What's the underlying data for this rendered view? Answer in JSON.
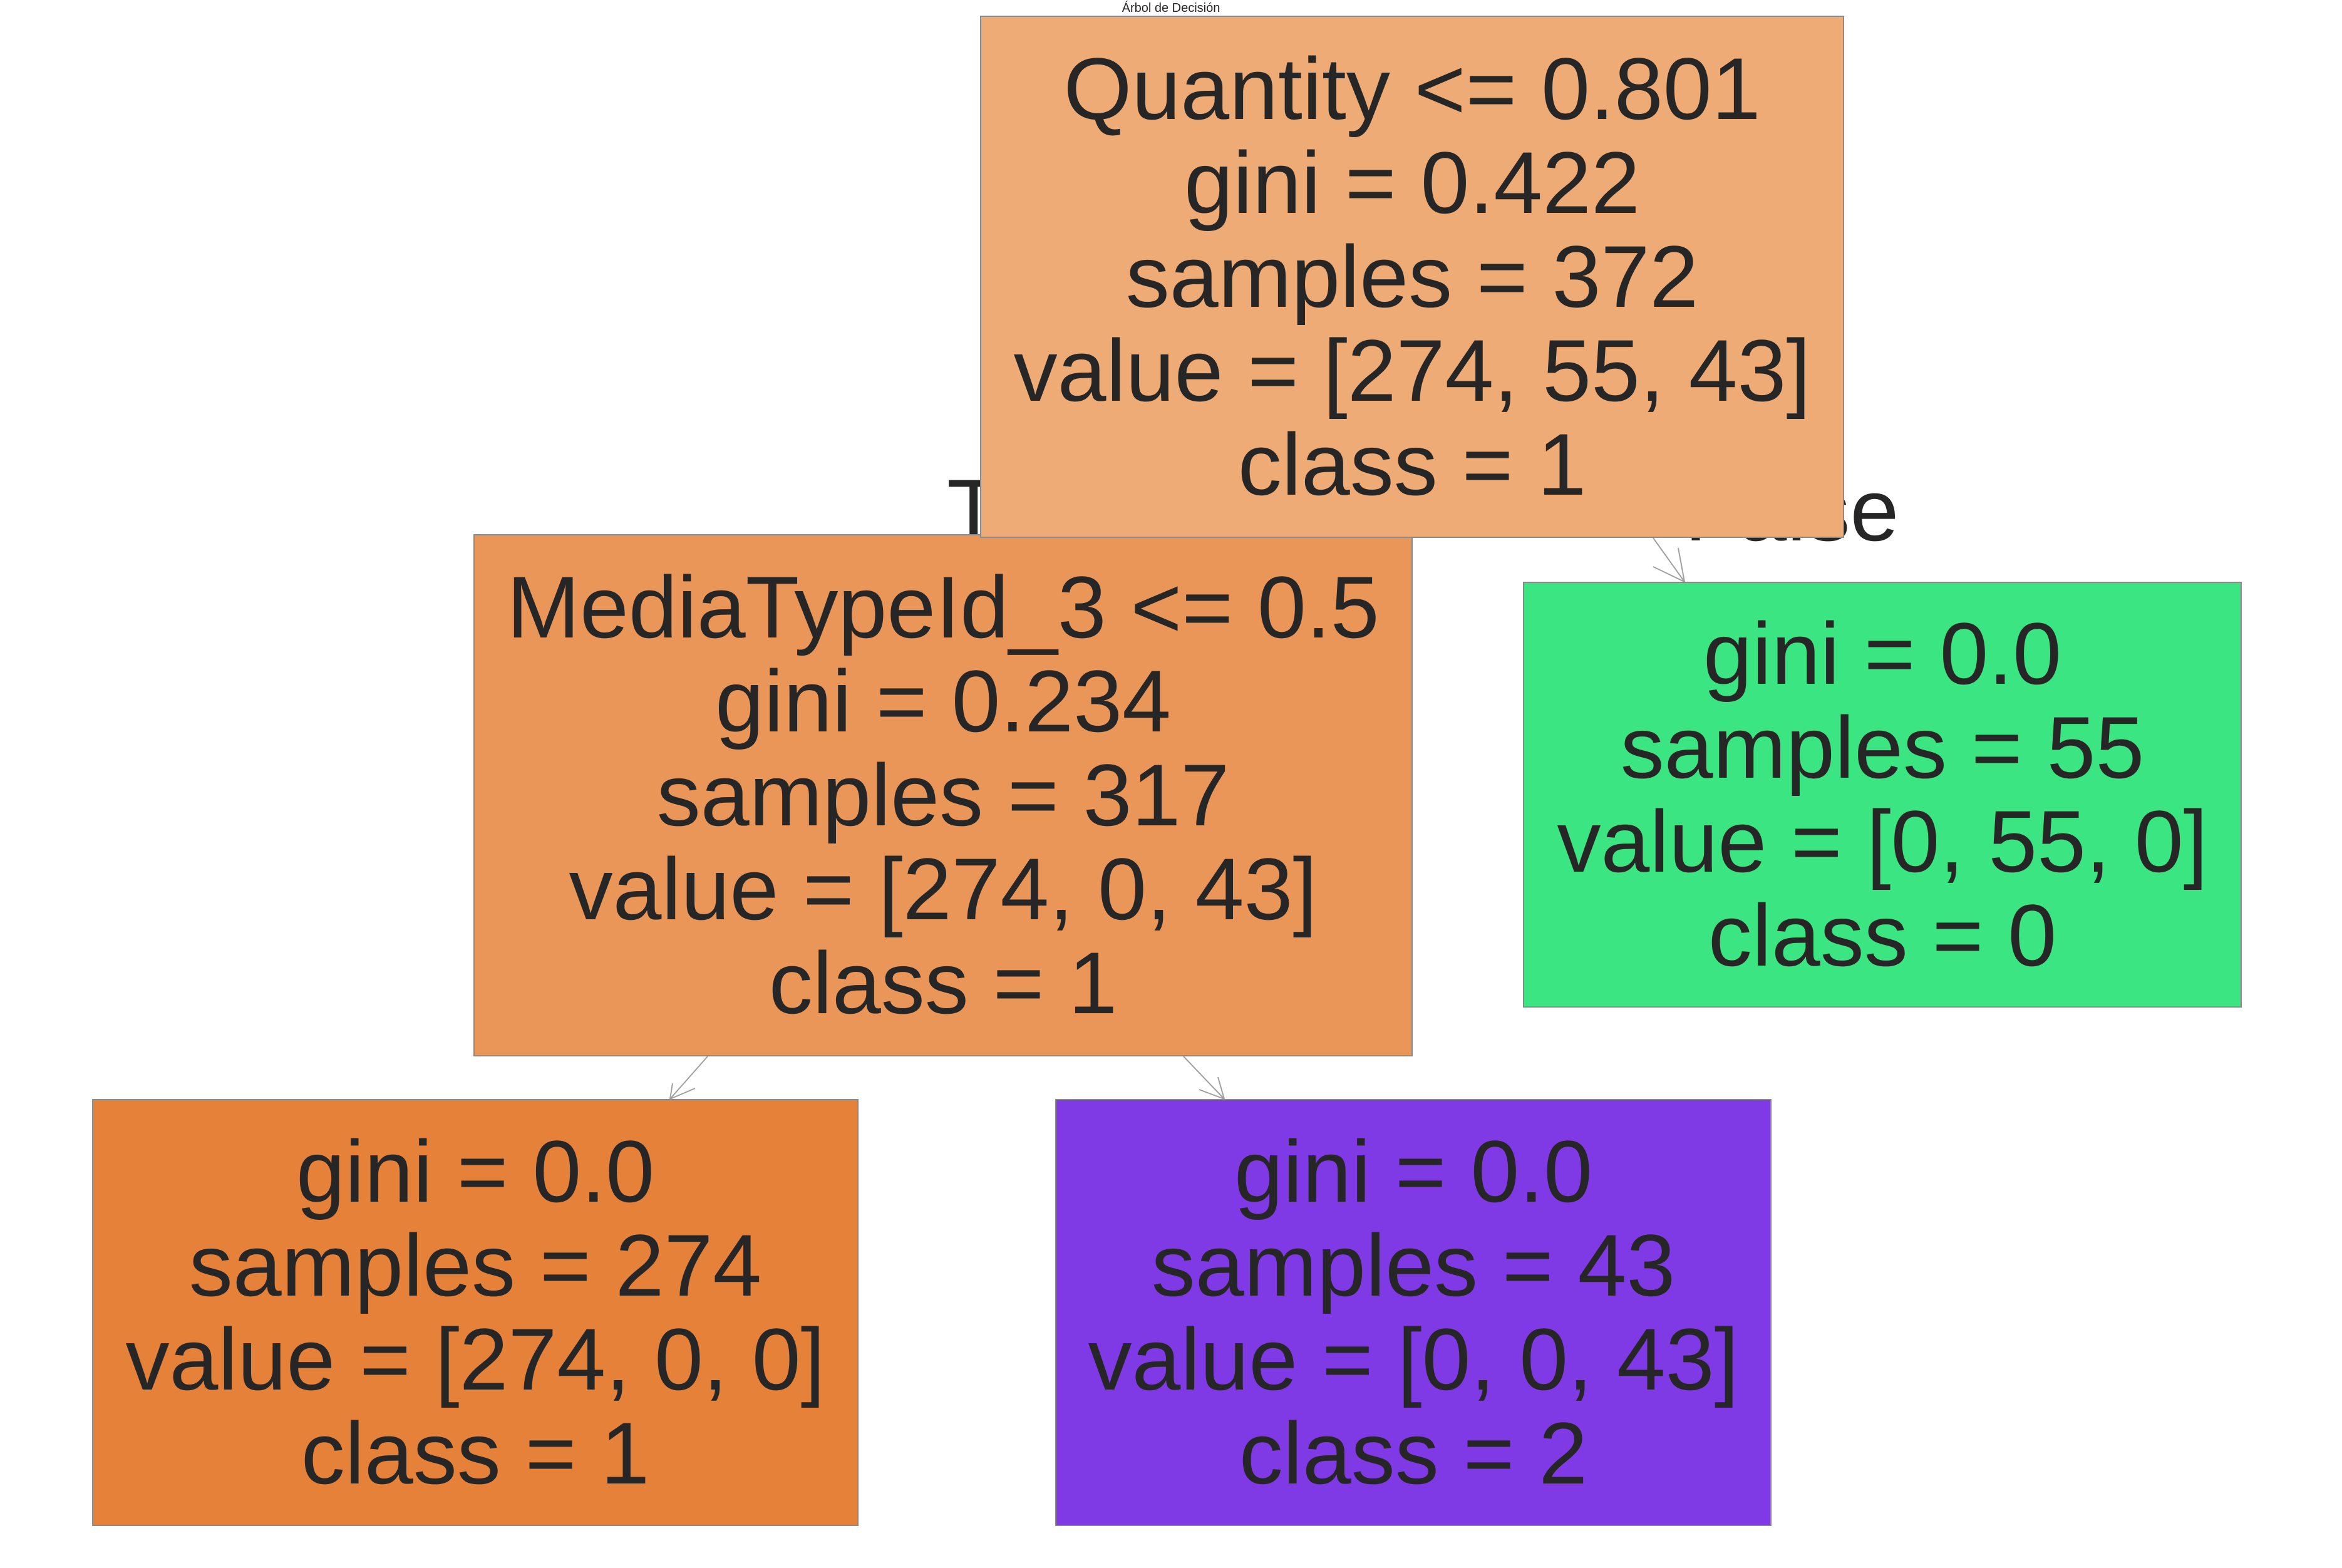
{
  "title": "Árbol de Decisión",
  "edge_labels": {
    "true": "True",
    "false": "False"
  },
  "nodes": {
    "root": {
      "lines": [
        "Quantity <= 0.801",
        "gini = 0.422",
        "samples = 372",
        "value = [274, 55, 43]",
        "class = 1"
      ],
      "color": "#eeab75"
    },
    "left": {
      "lines": [
        "MediaTypeId_3 <= 0.5",
        "gini = 0.234",
        "samples = 317",
        "value = [274, 0, 43]",
        "class = 1"
      ],
      "color": "#ea9659"
    },
    "right": {
      "lines": [
        "gini = 0.0",
        "samples = 55",
        "value = [0, 55, 0]",
        "class = 0"
      ],
      "color": "#3ae582"
    },
    "left_left": {
      "lines": [
        "gini = 0.0",
        "samples = 274",
        "value = [274, 0, 0]",
        "class = 1"
      ],
      "color": "#e58139"
    },
    "left_right": {
      "lines": [
        "gini = 0.0",
        "samples = 43",
        "value = [0, 0, 43]",
        "class = 2"
      ],
      "color": "#7f39e5"
    }
  }
}
